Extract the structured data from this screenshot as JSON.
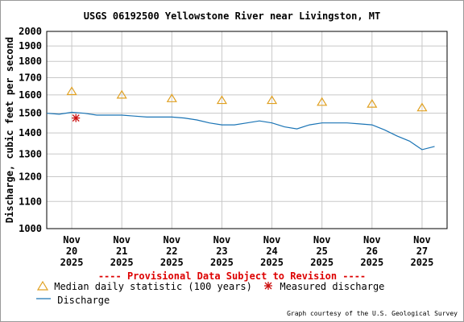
{
  "title": "USGS 06192500 Yellowstone River near Livingston, MT",
  "provisional_note": "---- Provisional Data Subject to Revision ----",
  "credit": "Graph courtesy of the U.S. Geological Survey",
  "legend": {
    "median_label": "Median daily statistic (100 years)",
    "measured_label": "Measured discharge",
    "discharge_label": "Discharge"
  },
  "colors": {
    "discharge": "#1a74b5",
    "median": "#e0a020",
    "measured": "#cc1010",
    "grid": "#c8c8c8"
  },
  "chart_data": {
    "type": "line",
    "ylabel": "Discharge, cubic feet per second",
    "y_scale": "log",
    "ylim": [
      1000,
      2000
    ],
    "yticks": [
      1000,
      1100,
      1200,
      1300,
      1400,
      1500,
      1600,
      1700,
      1800,
      1900,
      2000
    ],
    "ytick_labels": [
      "1000",
      "1100",
      "1200",
      "1300",
      "1400",
      "1500",
      "1600",
      "1700",
      "1800",
      "1900",
      "2000"
    ],
    "xlim": [
      "2025-11-19T12:00",
      "2025-11-27T12:00"
    ],
    "xticks": [
      "2025-11-20",
      "2025-11-21",
      "2025-11-22",
      "2025-11-23",
      "2025-11-24",
      "2025-11-25",
      "2025-11-26",
      "2025-11-27"
    ],
    "xtick_labels": [
      [
        "Nov",
        "20",
        "2025"
      ],
      [
        "Nov",
        "21",
        "2025"
      ],
      [
        "Nov",
        "22",
        "2025"
      ],
      [
        "Nov",
        "23",
        "2025"
      ],
      [
        "Nov",
        "24",
        "2025"
      ],
      [
        "Nov",
        "25",
        "2025"
      ],
      [
        "Nov",
        "26",
        "2025"
      ],
      [
        "Nov",
        "27",
        "2025"
      ]
    ],
    "grid": true,
    "series": [
      {
        "name": "Discharge",
        "style": "line",
        "x": [
          "2025-11-19T12:00",
          "2025-11-19T18:00",
          "2025-11-20T00:00",
          "2025-11-20T06:00",
          "2025-11-20T12:00",
          "2025-11-20T18:00",
          "2025-11-21T00:00",
          "2025-11-21T06:00",
          "2025-11-21T12:00",
          "2025-11-21T18:00",
          "2025-11-22T00:00",
          "2025-11-22T06:00",
          "2025-11-22T12:00",
          "2025-11-22T18:00",
          "2025-11-23T00:00",
          "2025-11-23T06:00",
          "2025-11-23T12:00",
          "2025-11-23T18:00",
          "2025-11-24T00:00",
          "2025-11-24T06:00",
          "2025-11-24T12:00",
          "2025-11-24T18:00",
          "2025-11-25T00:00",
          "2025-11-25T06:00",
          "2025-11-25T12:00",
          "2025-11-25T18:00",
          "2025-11-26T00:00",
          "2025-11-26T06:00",
          "2025-11-26T12:00",
          "2025-11-26T18:00",
          "2025-11-26T21:00",
          "2025-11-27T00:00",
          "2025-11-27T06:00"
        ],
        "values": [
          1500,
          1495,
          1505,
          1500,
          1490,
          1490,
          1490,
          1485,
          1480,
          1480,
          1480,
          1475,
          1465,
          1450,
          1440,
          1440,
          1450,
          1460,
          1450,
          1430,
          1420,
          1440,
          1450,
          1450,
          1450,
          1445,
          1440,
          1415,
          1385,
          1360,
          1340,
          1320,
          1335
        ]
      },
      {
        "name": "Median daily statistic (100 years)",
        "style": "triangle",
        "x": [
          "2025-11-20",
          "2025-11-21",
          "2025-11-22",
          "2025-11-23",
          "2025-11-24",
          "2025-11-25",
          "2025-11-26",
          "2025-11-27"
        ],
        "values": [
          1620,
          1600,
          1580,
          1570,
          1570,
          1560,
          1550,
          1530
        ]
      },
      {
        "name": "Measured discharge",
        "style": "asterisk",
        "x": [
          "2025-11-20T02:00"
        ],
        "values": [
          1475
        ]
      }
    ]
  }
}
